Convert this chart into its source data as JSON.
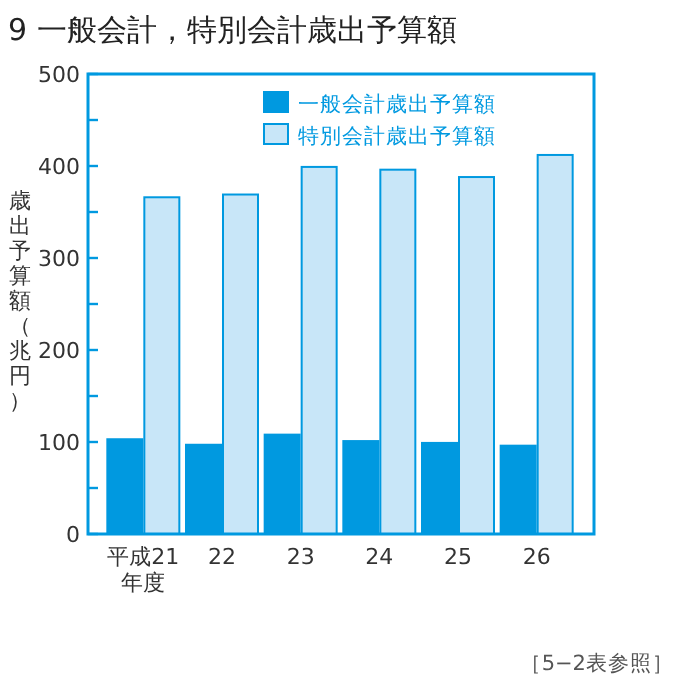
{
  "chart_data": {
    "type": "bar",
    "title": "9 一般会計，特別会計歳出予算額",
    "ylabel": "歳出予算額（兆円）",
    "categories": [
      "平成21年度",
      "22",
      "23",
      "24",
      "25",
      "26"
    ],
    "series": [
      {
        "name": "一般会計歳出予算額",
        "color": "#0099e0",
        "values": [
          103,
          97,
          108,
          101,
          99,
          96
        ]
      },
      {
        "name": "特別会計歳出予算額",
        "color": "#c8e6f8",
        "values": [
          366,
          369,
          399,
          396,
          388,
          412
        ]
      }
    ],
    "ylim": [
      0,
      500
    ],
    "yticks": [
      0,
      {
        "value": 50,
        "label": null
      },
      100,
      {
        "value": 150,
        "label": null
      },
      200,
      {
        "value": 250,
        "label": null
      },
      300,
      {
        "value": 350,
        "label": null
      },
      400,
      {
        "value": 450,
        "label": null
      },
      500
    ],
    "legend": "top right",
    "grid": false,
    "annotations": [
      "［5−2表参照］"
    ]
  }
}
